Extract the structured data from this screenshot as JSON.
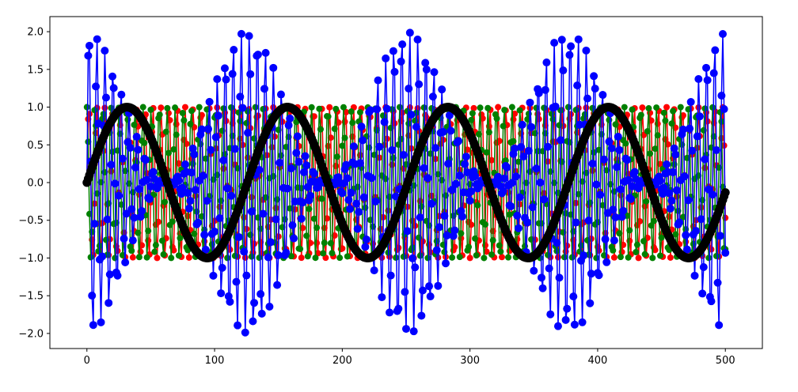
{
  "chart_data": {
    "type": "scatter",
    "title": "",
    "xlabel": "",
    "ylabel": "",
    "xlim": [
      -29,
      529
    ],
    "ylim": [
      -2.2,
      2.2
    ],
    "grid": false,
    "x_ticks": [
      0,
      100,
      200,
      300,
      400,
      500
    ],
    "y_ticks": [
      -2.0,
      -1.5,
      -1.0,
      -0.5,
      0.0,
      0.5,
      1.0,
      1.5,
      2.0
    ],
    "x_tick_labels": [
      "0",
      "100",
      "200",
      "300",
      "400",
      "500"
    ],
    "y_tick_labels": [
      "−2.0",
      "−1.5",
      "−1.0",
      "−0.5",
      "0.0",
      "0.5",
      "1.0",
      "1.5",
      "2.0"
    ],
    "x": {
      "start": 0,
      "end": 500,
      "step": 1
    },
    "series": [
      {
        "color": "#ff0000",
        "formula": "sin(x)",
        "amplitude": 1.0,
        "frequency": 1.0,
        "marker": "o",
        "marker_radius": 4
      },
      {
        "color": "#008000",
        "formula": "cos(x)",
        "amplitude": 1.0,
        "frequency": 1.0,
        "marker": "o",
        "marker_radius": 4
      },
      {
        "color": "#0000ff",
        "formula": "sin(x) + cos(x / 20) * sin(x)",
        "marker": "o",
        "marker_radius": 5
      },
      {
        "color": "#000000",
        "formula": "sin(x / 20)",
        "amplitude": 1.0,
        "frequency": 0.05,
        "marker": "o",
        "marker_radius": 5.5
      }
    ]
  }
}
